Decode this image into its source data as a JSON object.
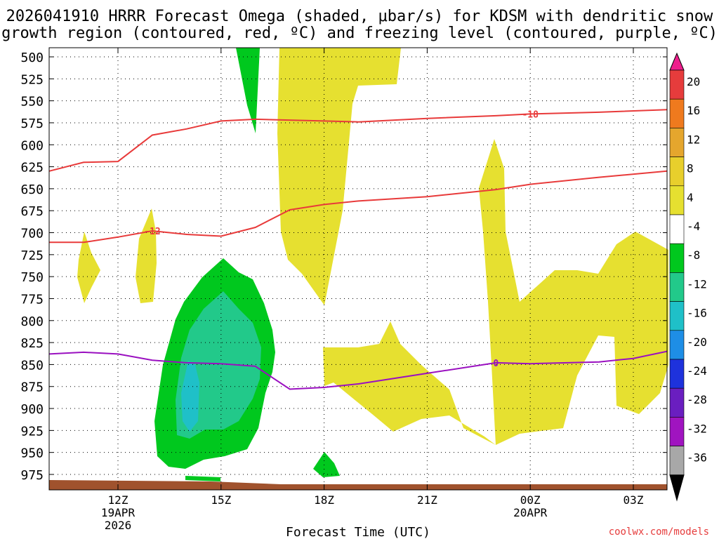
{
  "title": {
    "line1": "2026041910 HRRR Forecast Omega (shaded, μbar/s) for KDSM with dendritic snow",
    "line2": "growth region (contoured, red, ºC) and freezing level (contoured, purple, ºC)"
  },
  "xlabel": "Forecast Time (UTC)",
  "credit": "coolwx.com/models",
  "colors": {
    "snow_growth_line": "#e83a3a",
    "freezing_line": "#9a10c0",
    "ground": "#a0522d",
    "grid": "#000000"
  },
  "chart_data": {
    "type": "heatmap",
    "title": "2026041910 HRRR Forecast Omega (shaded, μbar/s) for KDSM with dendritic snow growth region (contoured, red, ºC) and freezing level (contoured, purple, ºC)",
    "xlabel": "Forecast Time (UTC)",
    "ylabel": "",
    "x_unit": "hours since 2026-04-19 10Z",
    "xlim": [
      0,
      18
    ],
    "x_ticks": [
      {
        "x": 2,
        "label": "12Z",
        "sub1": "19APR",
        "sub2": "2026"
      },
      {
        "x": 5,
        "label": "15Z",
        "sub1": "",
        "sub2": ""
      },
      {
        "x": 8,
        "label": "18Z",
        "sub1": "",
        "sub2": ""
      },
      {
        "x": 11,
        "label": "21Z",
        "sub1": "",
        "sub2": ""
      },
      {
        "x": 14,
        "label": "00Z",
        "sub1": "20APR",
        "sub2": ""
      },
      {
        "x": 17,
        "label": "03Z",
        "sub1": "",
        "sub2": ""
      }
    ],
    "y_scale": "pressure (mb), inverted",
    "ylim": [
      987,
      497
    ],
    "y_ticks": [
      "500",
      "525",
      "550",
      "575",
      "600",
      "625",
      "650",
      "675",
      "700",
      "725",
      "750",
      "775",
      "800",
      "825",
      "850",
      "875",
      "900",
      "925",
      "950",
      "975"
    ],
    "colorbar": {
      "levels": [
        "20",
        "16",
        "12",
        "8",
        "4",
        "-4",
        "-8",
        "-12",
        "-16",
        "-20",
        "-24",
        "-28",
        "-32",
        "-36"
      ],
      "colors": [
        "#ee1e8c",
        "#e63c3c",
        "#ef7a1e",
        "#e5a62d",
        "#e8cf2c",
        "#e6e030",
        "#ffffff",
        "#00c81e",
        "#22c98a",
        "#1fc0c8",
        "#1e8ee6",
        "#1e32dc",
        "#6a1ec0",
        "#a014c0",
        "#a8a8a8",
        "#000000"
      ]
    },
    "snow_growth_contours": [
      {
        "label": "-18",
        "points": [
          [
            0,
            630
          ],
          [
            1,
            620
          ],
          [
            2,
            619
          ],
          [
            3,
            589
          ],
          [
            4,
            582
          ],
          [
            5,
            573
          ],
          [
            6,
            571
          ],
          [
            8,
            573
          ],
          [
            9,
            574
          ],
          [
            11,
            570
          ],
          [
            13,
            567
          ],
          [
            14,
            565
          ],
          [
            16,
            563
          ],
          [
            18,
            560
          ]
        ]
      },
      {
        "label": "-12",
        "points": [
          [
            0,
            711
          ],
          [
            1,
            711
          ],
          [
            2,
            705
          ],
          [
            3,
            698
          ],
          [
            4,
            702
          ],
          [
            5,
            704
          ],
          [
            6,
            694
          ],
          [
            7,
            674
          ],
          [
            8,
            668
          ],
          [
            9,
            664
          ],
          [
            11,
            659
          ],
          [
            13,
            651
          ],
          [
            14,
            645
          ],
          [
            16,
            637
          ],
          [
            18,
            630
          ]
        ]
      }
    ],
    "freezing_level": {
      "label": "0",
      "points": [
        [
          0,
          838
        ],
        [
          1,
          836
        ],
        [
          2,
          838
        ],
        [
          3,
          845
        ],
        [
          4,
          848
        ],
        [
          5,
          849
        ],
        [
          6,
          852
        ],
        [
          7,
          878
        ],
        [
          8,
          876
        ],
        [
          9,
          872
        ],
        [
          11,
          860
        ],
        [
          13,
          848
        ],
        [
          14,
          849
        ],
        [
          16,
          847
        ],
        [
          17,
          843
        ],
        [
          18,
          835
        ]
      ]
    },
    "omega_regions": [
      {
        "name": "weak rising cores (4 to 8)",
        "level": "4",
        "color": "#e6e030"
      },
      {
        "name": "sinking (-4 to -8)",
        "level": "-4",
        "color": "#00c81e"
      },
      {
        "name": "sinking (-8 to -12)",
        "level": "-8",
        "color": "#22c98a"
      },
      {
        "name": "sinking (-12 to -16)",
        "level": "-12",
        "color": "#1fc0c8"
      }
    ]
  }
}
